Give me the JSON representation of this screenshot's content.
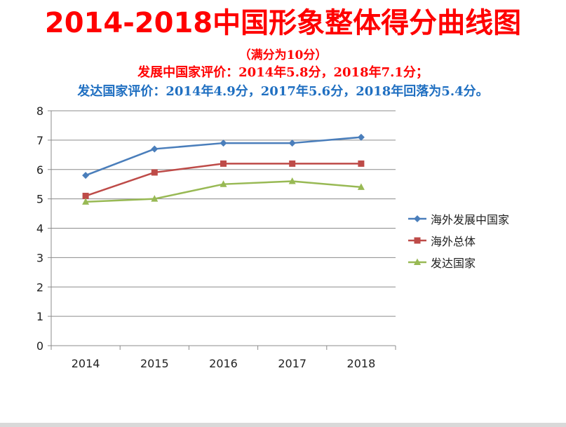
{
  "header": {
    "title": "2014-2018中国形象整体得分曲线图",
    "subtitle_full_score": "（满分为10分）",
    "subtitle_developing": "发展中国家评价：2014年5.8分，2018年7.1分；",
    "subtitle_developed": "发达国家评价：2014年4.9分，2017年5.6分，2018年回落为5.4分。"
  },
  "colors": {
    "title": "#ff0000",
    "developed_text": "#1f6fc1"
  },
  "chart_data": {
    "type": "line",
    "categories": [
      "2014",
      "2015",
      "2016",
      "2017",
      "2018"
    ],
    "ylim": [
      0,
      8
    ],
    "yticks": [
      "0",
      "1",
      "2",
      "3",
      "4",
      "5",
      "6",
      "7",
      "8"
    ],
    "grid": true,
    "legend_position": "right",
    "series": [
      {
        "name": "海外发展中国家",
        "values": [
          5.8,
          6.7,
          6.9,
          6.9,
          7.1
        ],
        "color": "#4a7ebb",
        "marker": "diamond"
      },
      {
        "name": "海外总体",
        "values": [
          5.1,
          5.9,
          6.2,
          6.2,
          6.2
        ],
        "color": "#be4b48",
        "marker": "square"
      },
      {
        "name": "发达国家",
        "values": [
          4.9,
          5.0,
          5.5,
          5.6,
          5.4
        ],
        "color": "#98b954",
        "marker": "triangle"
      }
    ]
  }
}
